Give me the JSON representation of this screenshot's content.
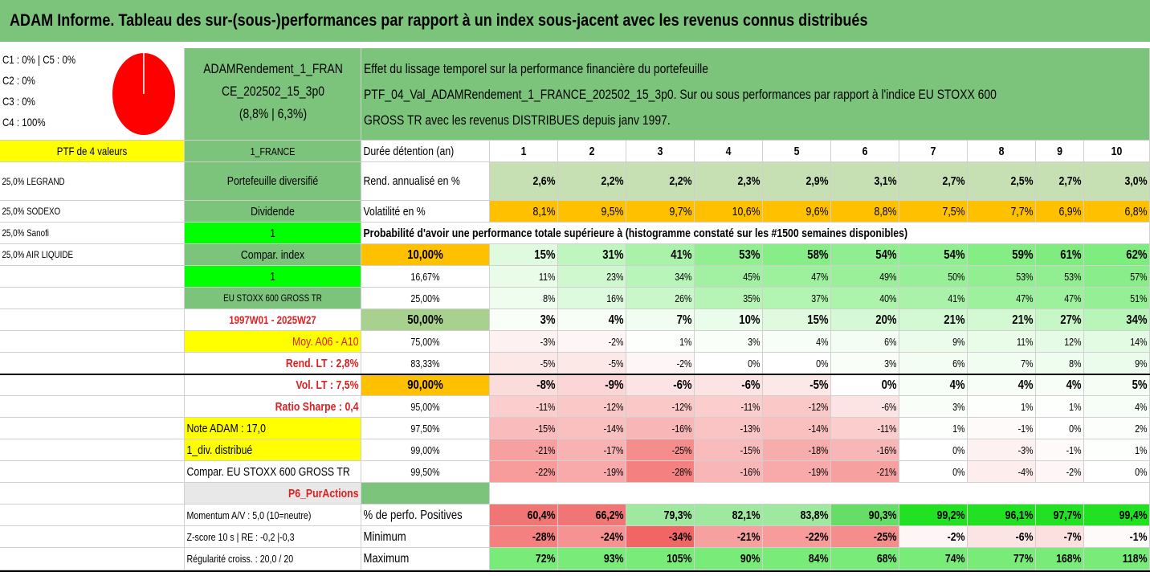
{
  "title": "ADAM Informe. Tableau des sur-(sous-)performances par rapport à un index sous-jacent avec les revenus connus distribués",
  "pie": {
    "legend": [
      "C1 : 0% | C5 : 0%",
      "C2 : 0%",
      "C3 : 0%",
      "C4 : 100%"
    ],
    "slices": [
      {
        "label": "C4",
        "value": 100,
        "color": "#ff0000"
      }
    ]
  },
  "portfolio": {
    "name_line1": "ADAMRendement_1_FRAN",
    "name_line2": "CE_202502_15_3p0",
    "name_line3": "(8,8% | 6,3%)",
    "desc_line1": "Effet du lissage temporel sur la performance financière du portefeuille",
    "desc_line2": "PTF_04_Val_ADAMRendement_1_FRANCE_202502_15_3p0. Sur ou sous performances par rapport à l'indice EU STOXX 600",
    "desc_line3": "GROSS TR avec les revenus DISTRIBUES depuis janv 1997."
  },
  "left_col": {
    "header": "PTF de 4 valeurs",
    "holdings": [
      "25,0% LEGRAND",
      "25,0% SODEXO",
      "25,0% Sanofi",
      "25,0% AIR LIQUIDE"
    ]
  },
  "info_col": [
    "1_FRANCE",
    "Portefeuille diversifié",
    "Dividende",
    "1",
    "Compar. index",
    "1",
    "EU STOXX 600 GROSS TR",
    "1997W01 - 2025W27",
    "Moy. A06 - A10",
    "Rend. LT : 2,8%",
    "Vol. LT : 7,5%",
    "Ratio Sharpe : 0,4",
    "Note ADAM : 17,0",
    "1_div. distribué",
    "Compar. EU STOXX 600 GROSS TR",
    "P6_PurActions",
    "Momentum A/V : 5,0 (10=neutre)",
    "Z-score 10 s | RE : -0,2 |-0,3",
    "Régularité croiss. : 20,0 / 20"
  ],
  "years_label": "Durée détention (an)",
  "years": [
    "1",
    "2",
    "3",
    "4",
    "5",
    "6",
    "7",
    "8",
    "9",
    "10"
  ],
  "rend_label": "Rend. annualisé en %",
  "rend": [
    "2,6%",
    "2,2%",
    "2,2%",
    "2,3%",
    "2,9%",
    "3,1%",
    "2,7%",
    "2,5%",
    "2,7%",
    "3,0%"
  ],
  "vol_label": "Volatilité en %",
  "vol": [
    "8,1%",
    "9,5%",
    "9,7%",
    "10,6%",
    "9,6%",
    "8,8%",
    "7,5%",
    "7,7%",
    "6,9%",
    "6,8%"
  ],
  "prob_title": "Probabilité d'avoir une performance totale supérieure à (histogramme constaté sur les #1500 semaines disponibles)",
  "prob_rows": [
    {
      "p": "10,00%",
      "bold": true,
      "vals": [
        "15%",
        "31%",
        "41%",
        "53%",
        "58%",
        "54%",
        "54%",
        "59%",
        "61%",
        "62%"
      ]
    },
    {
      "p": "16,67%",
      "bold": false,
      "vals": [
        "11%",
        "23%",
        "34%",
        "45%",
        "47%",
        "49%",
        "50%",
        "53%",
        "53%",
        "57%"
      ]
    },
    {
      "p": "25,00%",
      "bold": false,
      "vals": [
        "8%",
        "16%",
        "26%",
        "35%",
        "37%",
        "40%",
        "41%",
        "47%",
        "47%",
        "51%"
      ]
    },
    {
      "p": "50,00%",
      "bold": true,
      "vals": [
        "3%",
        "4%",
        "7%",
        "10%",
        "15%",
        "20%",
        "21%",
        "21%",
        "27%",
        "34%"
      ]
    },
    {
      "p": "75,00%",
      "bold": false,
      "vals": [
        "-3%",
        "-2%",
        "1%",
        "3%",
        "4%",
        "6%",
        "9%",
        "11%",
        "12%",
        "14%"
      ]
    },
    {
      "p": "83,33%",
      "bold": false,
      "vals": [
        "-5%",
        "-5%",
        "-2%",
        "0%",
        "0%",
        "3%",
        "6%",
        "7%",
        "8%",
        "9%"
      ]
    },
    {
      "p": "90,00%",
      "bold": true,
      "vals": [
        "-8%",
        "-9%",
        "-6%",
        "-6%",
        "-5%",
        "0%",
        "4%",
        "4%",
        "4%",
        "5%"
      ]
    },
    {
      "p": "95,00%",
      "bold": false,
      "vals": [
        "-11%",
        "-12%",
        "-12%",
        "-11%",
        "-12%",
        "-6%",
        "3%",
        "1%",
        "1%",
        "4%"
      ]
    },
    {
      "p": "97,50%",
      "bold": false,
      "vals": [
        "-15%",
        "-14%",
        "-16%",
        "-13%",
        "-14%",
        "-11%",
        "1%",
        "-1%",
        "0%",
        "2%"
      ]
    },
    {
      "p": "99,00%",
      "bold": false,
      "vals": [
        "-21%",
        "-17%",
        "-25%",
        "-15%",
        "-18%",
        "-16%",
        "0%",
        "-3%",
        "-1%",
        "1%"
      ]
    },
    {
      "p": "99,50%",
      "bold": false,
      "vals": [
        "-22%",
        "-19%",
        "-28%",
        "-16%",
        "-19%",
        "-21%",
        "0%",
        "-4%",
        "-2%",
        "0%"
      ]
    }
  ],
  "stats": [
    {
      "label": "% de perfo. Positives",
      "vals": [
        "60,4%",
        "66,2%",
        "79,3%",
        "82,1%",
        "83,8%",
        "90,3%",
        "99,2%",
        "96,1%",
        "97,7%",
        "99,4%"
      ]
    },
    {
      "label": "Minimum",
      "vals": [
        "-28%",
        "-24%",
        "-34%",
        "-21%",
        "-22%",
        "-25%",
        "-2%",
        "-6%",
        "-7%",
        "-1%"
      ]
    },
    {
      "label": "Maximum",
      "vals": [
        "72%",
        "93%",
        "105%",
        "90%",
        "84%",
        "68%",
        "74%",
        "77%",
        "168%",
        "118%"
      ]
    }
  ],
  "colors": {
    "header_green": "#7cc47c",
    "highlight_yellow": "#ffff00",
    "bright_green": "#00ff00",
    "orange": "#ffc000",
    "red_text": "#e02020"
  }
}
